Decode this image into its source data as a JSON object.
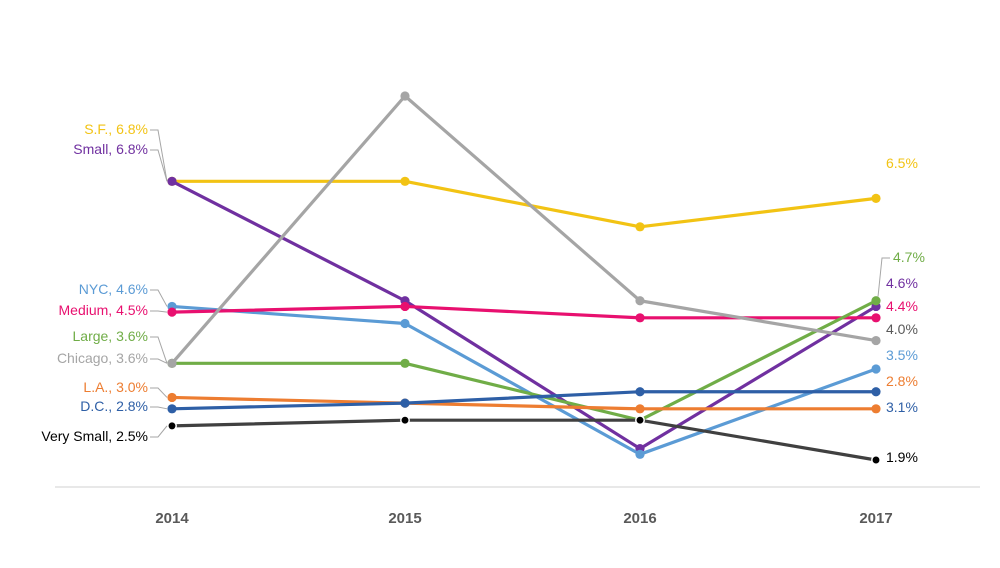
{
  "chart_data": {
    "type": "line",
    "title": "",
    "xlabel": "",
    "ylabel": "",
    "categories": [
      "2014",
      "2015",
      "2016",
      "2017"
    ],
    "ylim": [
      1.0,
      8.5
    ],
    "grid": false,
    "series": [
      {
        "name": "S.F.",
        "color": "#f2c314",
        "values": [
          6.8,
          6.8,
          6.0,
          6.5
        ],
        "start_label": "S.F., 6.8%",
        "end_label": "6.5%"
      },
      {
        "name": "Small",
        "color": "#7030a0",
        "values": [
          6.8,
          4.7,
          2.1,
          4.6
        ],
        "start_label": "Small, 6.8%",
        "end_label": "4.6%"
      },
      {
        "name": "NYC",
        "color": "#5b9bd5",
        "values": [
          4.6,
          4.3,
          2.0,
          3.5
        ],
        "start_label": "NYC, 4.6%",
        "end_label": "3.5%"
      },
      {
        "name": "Medium",
        "color": "#e8106f",
        "values": [
          4.5,
          4.6,
          4.4,
          4.4
        ],
        "start_label": "Medium, 4.5%",
        "end_label": "4.4%"
      },
      {
        "name": "Large",
        "color": "#70ad47",
        "values": [
          3.6,
          3.6,
          2.6,
          4.7
        ],
        "start_label": "Large, 3.6%",
        "end_label": "4.7%"
      },
      {
        "name": "Chicago",
        "color": "#a5a5a5",
        "values": [
          3.6,
          8.3,
          4.7,
          4.0
        ],
        "start_label": "Chicago, 3.6%",
        "end_label": "4.0%"
      },
      {
        "name": "L.A.",
        "color": "#ed7d31",
        "values": [
          3.0,
          2.9,
          2.8,
          2.8
        ],
        "start_label": "L.A., 3.0%",
        "end_label": "2.8%"
      },
      {
        "name": "D.C.",
        "color": "#2e5fa6",
        "values": [
          2.8,
          2.9,
          3.1,
          3.1
        ],
        "start_label": "D.C., 2.8%",
        "end_label": "3.1%"
      },
      {
        "name": "Very Small",
        "color": "#404040",
        "values": [
          2.5,
          2.6,
          2.6,
          1.9
        ],
        "start_label": "Very Small, 2.5%",
        "end_label": "1.9%"
      }
    ]
  }
}
